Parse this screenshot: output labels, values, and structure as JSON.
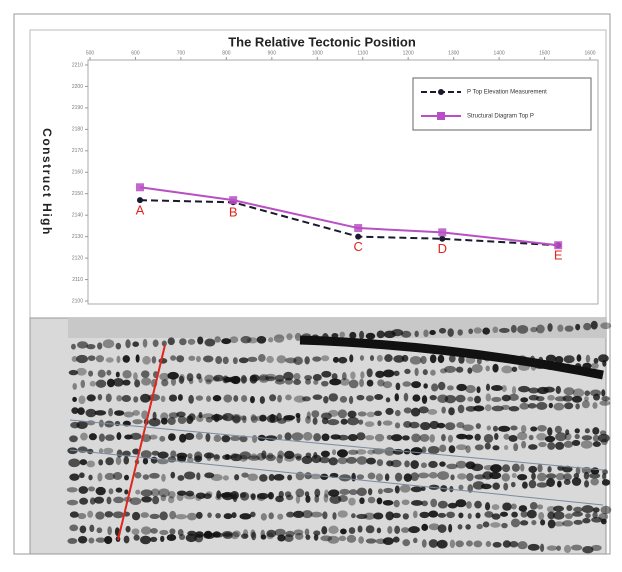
{
  "chart_data": {
    "type": "line",
    "title": "The Relative Tectonic Position",
    "y_label": "Construct High",
    "point_labels": [
      "A",
      "B",
      "C",
      "D",
      "E"
    ],
    "x": [
      610,
      815,
      1090,
      1275,
      1530
    ],
    "series": [
      {
        "name": "P Top Elevation Measurement",
        "color": "#1a1a2e",
        "marker": "circle",
        "dashed": true,
        "values": [
          2147,
          2146,
          2130,
          2129,
          2126
        ]
      },
      {
        "name": "Structural Diagram Top P",
        "color": "#b84fc4",
        "marker": "square",
        "dashed": false,
        "values": [
          2153,
          2147,
          2134,
          2132,
          2126
        ]
      }
    ],
    "xlim": [
      500,
      1600
    ],
    "xticks": [
      500,
      600,
      700,
      800,
      900,
      1000,
      1100,
      1200,
      1300,
      1400,
      1500,
      1600
    ],
    "ylim": [
      2100,
      2210
    ],
    "yticks": [
      2100,
      2110,
      2120,
      2130,
      2140,
      2150,
      2160,
      2170,
      2180,
      2190,
      2200,
      2210
    ],
    "legend": "top-right",
    "label_color": "#e0261c"
  }
}
